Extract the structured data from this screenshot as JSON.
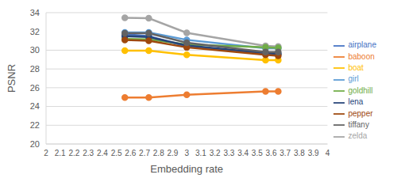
{
  "chart_data": {
    "type": "line",
    "x_label": "Embedding rate",
    "y_label": "PSNR",
    "x": [
      2.56,
      2.73,
      3.0,
      3.56,
      3.65
    ],
    "xlim": [
      2,
      4
    ],
    "xticks": [
      2,
      2.1,
      2.2,
      2.3,
      2.4,
      2.5,
      2.6,
      2.7,
      2.8,
      2.9,
      3,
      3.1,
      3.2,
      3.3,
      3.4,
      3.5,
      3.6,
      3.7,
      3.8,
      3.9,
      4
    ],
    "ylim": [
      20,
      34
    ],
    "yticks": [
      20,
      22,
      24,
      26,
      28,
      30,
      32,
      34
    ],
    "grid": true,
    "legend": "right",
    "marker": "circle",
    "series": [
      {
        "name": "airplane",
        "color": "#4472c4",
        "values": [
          31.7,
          31.5,
          30.4,
          29.6,
          29.6
        ]
      },
      {
        "name": "baboon",
        "color": "#ed7d31",
        "values": [
          24.95,
          24.95,
          25.25,
          25.6,
          25.6
        ]
      },
      {
        "name": "zelda",
        "color": "#a5a5a5",
        "values": [
          33.45,
          33.4,
          31.85,
          30.45,
          30.4
        ]
      },
      {
        "name": "boat",
        "color": "#ffc000",
        "values": [
          29.95,
          29.95,
          29.5,
          28.95,
          28.95
        ]
      },
      {
        "name": "girl",
        "color": "#5b9bd5",
        "values": [
          31.9,
          31.9,
          31.1,
          30.2,
          30.2
        ]
      },
      {
        "name": "goldhill",
        "color": "#70ad47",
        "values": [
          31.2,
          31.15,
          30.6,
          30.3,
          30.25
        ]
      },
      {
        "name": "lena",
        "color": "#264478",
        "values": [
          31.5,
          31.4,
          30.5,
          29.7,
          29.6
        ]
      },
      {
        "name": "pepper",
        "color": "#9e480e",
        "values": [
          31.1,
          31.0,
          30.3,
          29.5,
          29.4
        ]
      },
      {
        "name": "tiffany",
        "color": "#636363",
        "values": [
          31.8,
          31.8,
          30.8,
          29.8,
          29.8
        ]
      }
    ]
  }
}
